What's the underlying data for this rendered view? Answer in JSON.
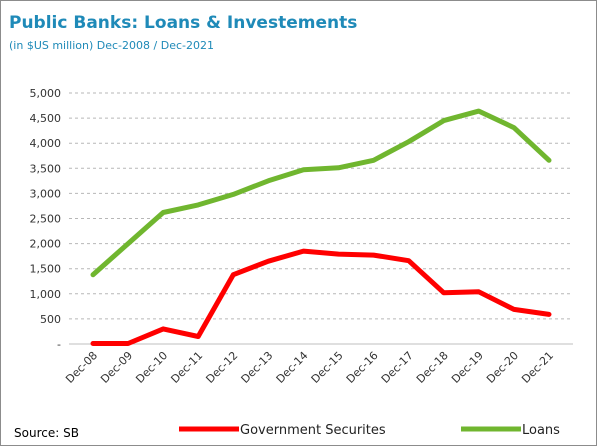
{
  "title": "Public Banks: Loans & Investements",
  "subtitle": "(in $US million)  Dec-2008 / Dec-2021",
  "source": "Source: SB",
  "chart_data": {
    "type": "line",
    "title": "Public Banks: Loans & Investements",
    "subtitle": "(in $US million)  Dec-2008 / Dec-2021",
    "categories": [
      "Dec-08",
      "Dec-09",
      "Dec-10",
      "Dec-11",
      "Dec-12",
      "Dec-13",
      "Dec-14",
      "Dec-15",
      "Dec-16",
      "Dec-17",
      "Dec-18",
      "Dec-19",
      "Dec-20",
      "Dec-21"
    ],
    "y_ticks": [
      "-",
      "500",
      "1,000",
      "1,500",
      "2,000",
      "2,500",
      "3,000",
      "3,500",
      "4,000",
      "4,500",
      "5,000"
    ],
    "ylim": [
      0,
      5000
    ],
    "grid": "horizontal dashed",
    "legend_position": "bottom",
    "series": [
      {
        "name": "Government Securites",
        "color": "#ff0000",
        "values": [
          10,
          10,
          300,
          150,
          1380,
          1650,
          1850,
          1790,
          1770,
          1660,
          1020,
          1040,
          690,
          590
        ]
      },
      {
        "name": "Loans",
        "color": "#70b62f",
        "values": [
          1380,
          2000,
          2620,
          2770,
          2980,
          3250,
          3470,
          3510,
          3660,
          4030,
          4450,
          4640,
          4310,
          3660
        ]
      }
    ]
  }
}
